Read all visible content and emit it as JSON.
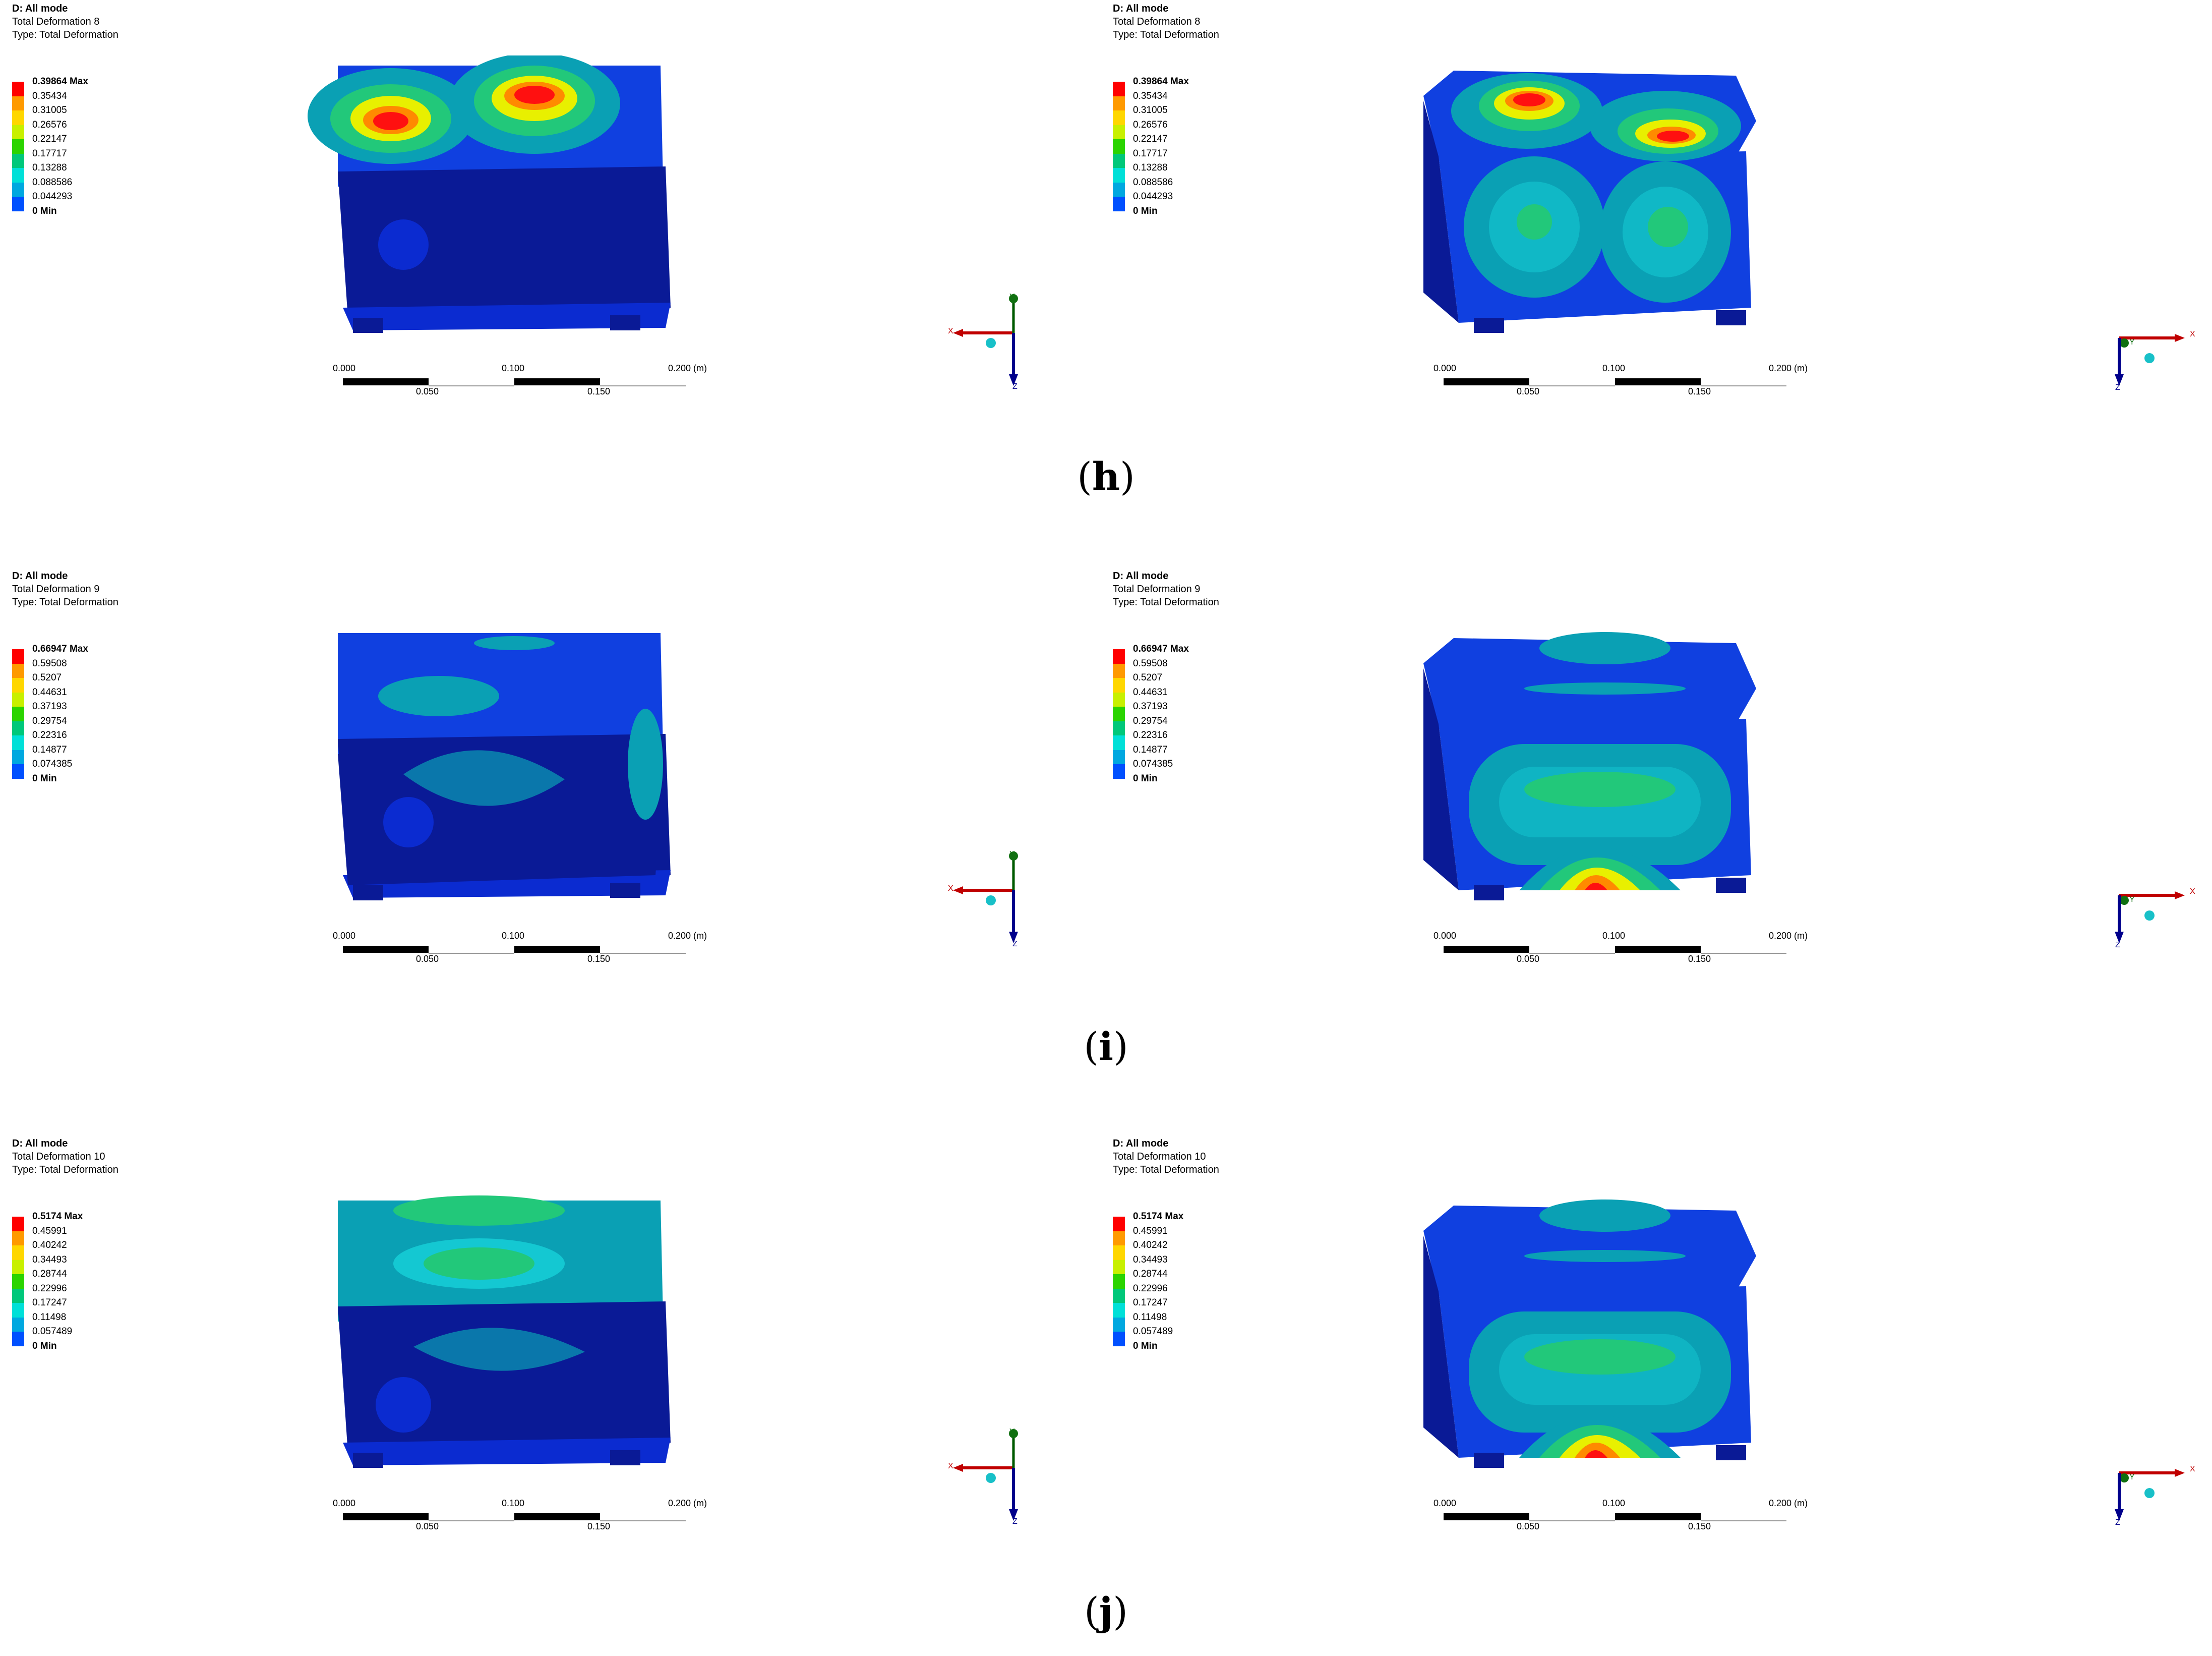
{
  "rows": [
    {
      "caption": {
        "open": "(",
        "letter": "h",
        "close": ")"
      },
      "panels": [
        {
          "header": {
            "title": "D: All mode",
            "result": "Total Deformation 8",
            "type": "Type: Total Deformation"
          },
          "legend": [
            "0.39864 Max",
            "0.35434",
            "0.31005",
            "0.26576",
            "0.22147",
            "0.17717",
            "0.13288",
            "0.088586",
            "0.044293",
            "0 Min"
          ],
          "triad": "iso-left"
        },
        {
          "header": {
            "title": "D: All mode",
            "result": "Total Deformation 8",
            "type": "Type: Total Deformation"
          },
          "legend": [
            "0.39864 Max",
            "0.35434",
            "0.31005",
            "0.26576",
            "0.22147",
            "0.17717",
            "0.13288",
            "0.088586",
            "0.044293",
            "0 Min"
          ],
          "triad": "iso-right"
        }
      ]
    },
    {
      "caption": {
        "open": "(",
        "letter": "i",
        "close": ")"
      },
      "panels": [
        {
          "header": {
            "title": "D: All mode",
            "result": "Total Deformation 9",
            "type": "Type: Total Deformation"
          },
          "legend": [
            "0.66947 Max",
            "0.59508",
            "0.5207",
            "0.44631",
            "0.37193",
            "0.29754",
            "0.22316",
            "0.14877",
            "0.074385",
            "0 Min"
          ],
          "triad": "iso-left"
        },
        {
          "header": {
            "title": "D: All mode",
            "result": "Total Deformation 9",
            "type": "Type: Total Deformation"
          },
          "legend": [
            "0.66947 Max",
            "0.59508",
            "0.5207",
            "0.44631",
            "0.37193",
            "0.29754",
            "0.22316",
            "0.14877",
            "0.074385",
            "0 Min"
          ],
          "triad": "iso-right"
        }
      ]
    },
    {
      "caption": {
        "open": "(",
        "letter": "j",
        "close": ")"
      },
      "panels": [
        {
          "header": {
            "title": "D: All mode",
            "result": "Total Deformation 10",
            "type": "Type: Total Deformation"
          },
          "legend": [
            "0.5174 Max",
            "0.45991",
            "0.40242",
            "0.34493",
            "0.28744",
            "0.22996",
            "0.17247",
            "0.11498",
            "0.057489",
            "0 Min"
          ],
          "triad": "iso-left"
        },
        {
          "header": {
            "title": "D: All mode",
            "result": "Total Deformation 10",
            "type": "Type: Total Deformation"
          },
          "legend": [
            "0.5174 Max",
            "0.45991",
            "0.40242",
            "0.34493",
            "0.28744",
            "0.22996",
            "0.17247",
            "0.11498",
            "0.057489",
            "0 Min"
          ],
          "triad": "iso-right"
        }
      ]
    }
  ],
  "legend_colors": [
    "#ff0000",
    "#ff9a00",
    "#ffd700",
    "#c8f000",
    "#2bd400",
    "#00c87a",
    "#00e0d8",
    "#00a8e0",
    "#0050ff",
    "#0000e0"
  ],
  "scale_bar": {
    "top_ticks": [
      "0.000",
      "0.100",
      "0.200 (m)"
    ],
    "bottom_ticks": [
      "0.050",
      "0.150"
    ]
  },
  "axes": {
    "x": "X",
    "y": "Y",
    "z": "Z"
  }
}
